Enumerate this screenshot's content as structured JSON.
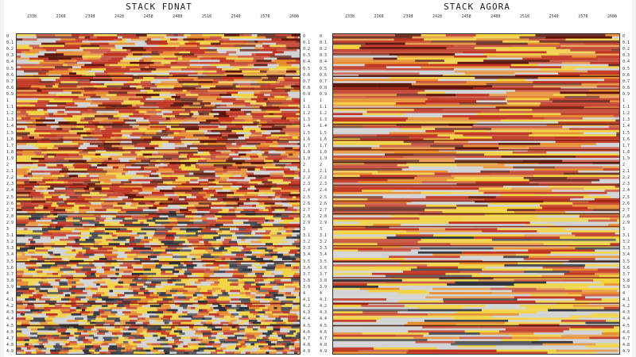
{
  "panels": [
    {
      "title": "STACK FDNAT",
      "style": "noisy"
    },
    {
      "title": "STACK AGORA",
      "style": "clean"
    }
  ],
  "cdp_labels": [
    "2338",
    "2368",
    "2398",
    "2428",
    "2458",
    "2488",
    "2518",
    "2548",
    "2578",
    "2608"
  ],
  "time_labels": [
    "0",
    "0.1",
    "0.2",
    "0.3",
    "0.4",
    "0.5",
    "0.6",
    "0.7",
    "0.8",
    "0.9",
    "1",
    "1.1",
    "1.2",
    "1.3",
    "1.4",
    "1.5",
    "1.6",
    "1.7",
    "1.8",
    "1.9",
    "2",
    "2.1",
    "2.2",
    "2.3",
    "2.4",
    "2.5",
    "2.6",
    "2.7",
    "2.8",
    "2.9",
    "3",
    "3.1",
    "3.2",
    "3.3",
    "3.4",
    "3.5",
    "3.6",
    "3.7",
    "3.8",
    "3.9",
    "4",
    "4.1",
    "4.2",
    "4.3",
    "4.4",
    "4.5",
    "4.6",
    "4.7",
    "4.8",
    "4.9"
  ],
  "colors": {
    "low": "#2a2f3a",
    "gray": "#cfd2d6",
    "yellow": "#f3d23a",
    "orange": "#e88a2a",
    "red": "#c0301e",
    "dark": "#5a1208"
  }
}
